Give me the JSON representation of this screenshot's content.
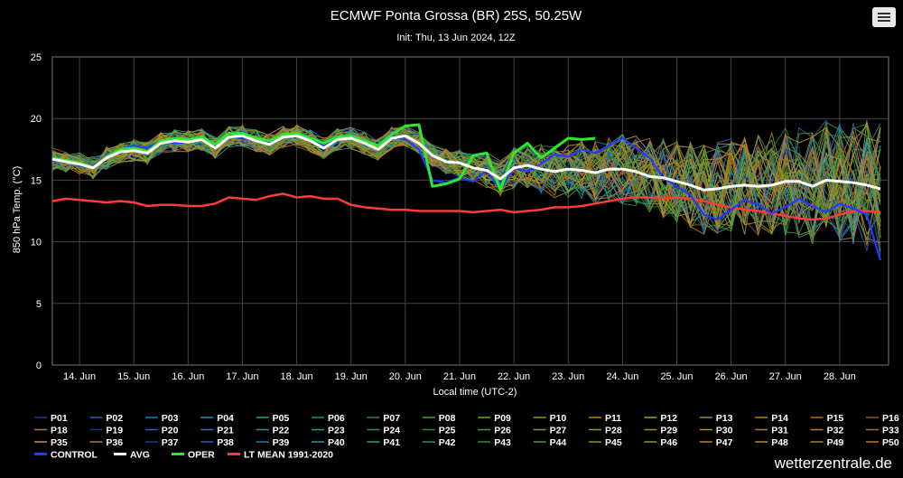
{
  "menu": {
    "icon": "hamburger-menu-icon"
  },
  "watermark": "wetterzentrale.de",
  "colors": {
    "control": "#1f3cff",
    "avg": "#ffffff",
    "oper": "#2ee82e",
    "lt_mean": "#ff3b3b",
    "grid": "#444444"
  },
  "chart_data": {
    "type": "line",
    "title": "ECMWF Ponta Grossa (BR) 25S, 50.25W",
    "subtitle": "Init: Thu, 13 Jun 2024, 12Z",
    "xlabel": "Local time (UTC-2)",
    "ylabel": "850 hPa Temp. (°C)",
    "ylim": [
      0,
      25
    ],
    "yticks": [
      0,
      5,
      10,
      15,
      20,
      25
    ],
    "xlim_days": [
      13.5,
      28.9
    ],
    "xticks": [
      "14. Jun",
      "15. Jun",
      "16. Jun",
      "17. Jun",
      "18. Jun",
      "19. Jun",
      "20. Jun",
      "21. Jun",
      "22. Jun",
      "23. Jun",
      "24. Jun",
      "25. Jun",
      "26. Jun",
      "27. Jun",
      "28. Jun"
    ],
    "grid": true,
    "legend_position": "bottom",
    "ensemble_members": [
      "P01",
      "P02",
      "P03",
      "P04",
      "P05",
      "P06",
      "P07",
      "P08",
      "P09",
      "P10",
      "P11",
      "P12",
      "P13",
      "P14",
      "P15",
      "P16",
      "P17",
      "P18",
      "P19",
      "P20",
      "P21",
      "P22",
      "P23",
      "P24",
      "P25",
      "P26",
      "P27",
      "P28",
      "P29",
      "P30",
      "P31",
      "P32",
      "P33",
      "P34",
      "P35",
      "P36",
      "P37",
      "P38",
      "P39",
      "P40",
      "P41",
      "P42",
      "P43",
      "P44",
      "P45",
      "P46",
      "P47",
      "P48",
      "P49",
      "P50"
    ],
    "series": [
      {
        "name": "CONTROL",
        "color": "#1f3cff",
        "x": [
          13.5,
          13.75,
          14,
          14.25,
          14.5,
          14.75,
          15,
          15.25,
          15.5,
          15.75,
          16,
          16.25,
          16.5,
          16.75,
          17,
          17.25,
          17.5,
          17.75,
          18,
          18.25,
          18.5,
          18.75,
          19,
          19.25,
          19.5,
          19.75,
          20,
          20.25,
          20.5,
          20.75,
          21,
          21.25,
          21.5,
          21.75,
          22,
          22.25,
          22.5,
          22.75,
          23,
          23.25,
          23.5,
          23.75,
          24,
          24.25,
          24.5,
          24.75,
          25,
          25.25,
          25.5,
          25.75,
          26,
          26.25,
          26.5,
          26.75,
          27,
          27.25,
          27.5,
          27.75,
          28,
          28.25,
          28.5,
          28.75
        ],
        "y": [
          16.6,
          16.5,
          16.2,
          16.0,
          17.0,
          17.5,
          17.8,
          17.6,
          18.2,
          18.0,
          18.1,
          18.3,
          17.9,
          18.5,
          18.4,
          18.3,
          18.1,
          18.5,
          18.6,
          18.2,
          17.8,
          18.3,
          18.5,
          18.1,
          17.9,
          18.6,
          18.3,
          17.5,
          15.0,
          14.8,
          15.2,
          14.9,
          15.8,
          14.2,
          16.0,
          15.7,
          16.3,
          17.1,
          16.9,
          17.5,
          17.2,
          17.8,
          18.4,
          17.6,
          16.8,
          15.2,
          14.5,
          13.8,
          12.2,
          11.8,
          12.6,
          13.4,
          13.0,
          12.3,
          12.8,
          13.5,
          12.9,
          12.4,
          13.1,
          12.7,
          12.2,
          8.5
        ]
      },
      {
        "name": "AVG",
        "color": "#ffffff",
        "x": [
          13.5,
          13.75,
          14,
          14.25,
          14.5,
          14.75,
          15,
          15.25,
          15.5,
          15.75,
          16,
          16.25,
          16.5,
          16.75,
          17,
          17.25,
          17.5,
          17.75,
          18,
          18.25,
          18.5,
          18.75,
          19,
          19.25,
          19.5,
          19.75,
          20,
          20.25,
          20.5,
          20.75,
          21,
          21.25,
          21.5,
          21.75,
          22,
          22.25,
          22.5,
          22.75,
          23,
          23.25,
          23.5,
          23.75,
          24,
          24.25,
          24.5,
          24.75,
          25,
          25.25,
          25.5,
          25.75,
          26,
          26.25,
          26.5,
          26.75,
          27,
          27.25,
          27.5,
          27.75,
          28,
          28.25,
          28.5,
          28.75
        ],
        "y": [
          16.7,
          16.5,
          16.3,
          16.0,
          16.8,
          17.3,
          17.4,
          17.2,
          18.0,
          18.2,
          18.1,
          18.3,
          17.6,
          18.5,
          18.6,
          18.2,
          17.9,
          18.5,
          18.6,
          18.2,
          17.6,
          18.3,
          18.4,
          18.0,
          17.5,
          18.4,
          18.6,
          18.0,
          17.0,
          16.5,
          16.4,
          16.0,
          15.8,
          15.1,
          16.0,
          16.2,
          15.9,
          15.7,
          15.9,
          15.8,
          15.6,
          15.9,
          15.9,
          15.7,
          15.3,
          15.2,
          14.9,
          14.6,
          14.2,
          14.3,
          14.5,
          14.6,
          14.5,
          14.6,
          14.9,
          14.9,
          14.5,
          15.0,
          14.9,
          14.8,
          14.6,
          14.3
        ]
      },
      {
        "name": "OPER",
        "color": "#2ee82e",
        "x": [
          13.5,
          13.75,
          14,
          14.25,
          14.5,
          14.75,
          15,
          15.25,
          15.5,
          15.75,
          16,
          16.25,
          16.5,
          16.75,
          17,
          17.25,
          17.5,
          17.75,
          18,
          18.25,
          18.5,
          18.75,
          19,
          19.25,
          19.5,
          19.75,
          20,
          20.25,
          20.5,
          20.75,
          21,
          21.25,
          21.5,
          21.75,
          22,
          22.25,
          22.5,
          22.75,
          23,
          23.25,
          23.5
        ],
        "y": [
          16.8,
          16.6,
          16.4,
          16.0,
          16.9,
          17.5,
          17.6,
          17.3,
          18.2,
          18.4,
          18.3,
          18.5,
          17.9,
          18.8,
          18.8,
          18.4,
          18.2,
          18.7,
          18.8,
          18.4,
          18.0,
          18.5,
          18.6,
          18.2,
          17.8,
          18.7,
          19.4,
          19.5,
          14.5,
          14.7,
          15.1,
          17.0,
          17.2,
          14.2,
          17.2,
          18.0,
          16.8,
          17.6,
          18.4,
          18.3,
          18.4
        ]
      },
      {
        "name": "LT MEAN 1991-2020",
        "color": "#ff3b3b",
        "x": [
          13.5,
          13.75,
          14,
          14.25,
          14.5,
          14.75,
          15,
          15.25,
          15.5,
          15.75,
          16,
          16.25,
          16.5,
          16.75,
          17,
          17.25,
          17.5,
          17.75,
          18,
          18.25,
          18.5,
          18.75,
          19,
          19.25,
          19.5,
          19.75,
          20,
          20.25,
          20.5,
          20.75,
          21,
          21.25,
          21.5,
          21.75,
          22,
          22.25,
          22.5,
          22.75,
          23,
          23.25,
          23.5,
          23.75,
          24,
          24.25,
          24.5,
          24.75,
          25,
          25.25,
          25.5,
          25.75,
          26,
          26.25,
          26.5,
          26.75,
          27,
          27.25,
          27.5,
          27.75,
          28,
          28.25,
          28.5,
          28.75
        ],
        "y": [
          13.3,
          13.5,
          13.4,
          13.3,
          13.2,
          13.3,
          13.2,
          12.9,
          13.0,
          13.0,
          12.9,
          12.9,
          13.1,
          13.6,
          13.5,
          13.4,
          13.7,
          13.9,
          13.6,
          13.7,
          13.5,
          13.5,
          13.0,
          12.8,
          12.7,
          12.6,
          12.6,
          12.5,
          12.5,
          12.5,
          12.5,
          12.4,
          12.5,
          12.6,
          12.4,
          12.5,
          12.6,
          12.8,
          12.8,
          12.9,
          13.1,
          13.3,
          13.5,
          13.6,
          13.6,
          13.5,
          13.6,
          13.5,
          13.3,
          13.0,
          12.8,
          12.6,
          12.5,
          12.3,
          12.1,
          11.9,
          11.8,
          11.9,
          12.2,
          12.5,
          12.5,
          12.4
        ]
      }
    ]
  }
}
